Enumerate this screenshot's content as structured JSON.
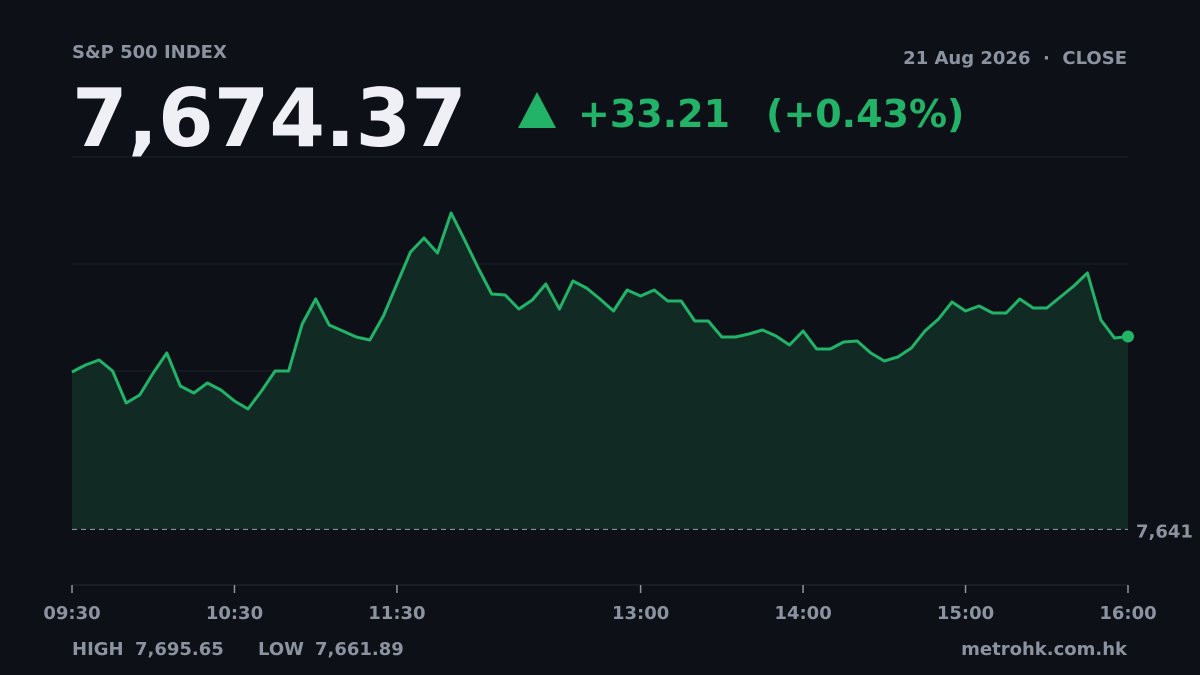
{
  "chart_data": {
    "type": "line",
    "title": "S&P 500 INDEX",
    "subtitle": "21 Aug 2026  ·  CLOSE",
    "last_price": "7,674.37",
    "change": "+33.21",
    "change_pct": "(+0.43%)",
    "high_label": "HIGH",
    "high": "7,695.65",
    "low_label": "LOW",
    "low": "7,661.89",
    "source": "metrohk.com.hk",
    "color": "#22b368",
    "fill_color": "#122a24",
    "reference": {
      "value": 7641.16,
      "label": "7,641"
    },
    "x": [
      570,
      575,
      580,
      585,
      590,
      595,
      600,
      605,
      610,
      615,
      620,
      625,
      630,
      635,
      640,
      645,
      650,
      655,
      660,
      665,
      670,
      675,
      680,
      685,
      690,
      695,
      700,
      705,
      710,
      715,
      720,
      725,
      730,
      735,
      740,
      745,
      750,
      755,
      760,
      765,
      770,
      775,
      780,
      785,
      790,
      795,
      800,
      805,
      810,
      815,
      820,
      825,
      830,
      835,
      840,
      845,
      850,
      855,
      860,
      865,
      870,
      875,
      880,
      885,
      890,
      895,
      900,
      905,
      910,
      915,
      920,
      925,
      930,
      935,
      940,
      945,
      950,
      955,
      960
    ],
    "values": [
      7668.26,
      7669.47,
      7670.33,
      7668.44,
      7662.92,
      7664.3,
      7668.09,
      7671.54,
      7665.85,
      7664.65,
      7666.37,
      7665.16,
      7663.27,
      7661.89,
      7664.99,
      7668.44,
      7668.44,
      7676.53,
      7680.84,
      7676.36,
      7675.32,
      7674.29,
      7673.77,
      7677.91,
      7683.42,
      7688.93,
      7691.34,
      7688.76,
      7695.65,
      7691.0,
      7686.18,
      7681.7,
      7681.53,
      7679.11,
      7680.66,
      7683.42,
      7679.11,
      7683.94,
      7682.73,
      7680.84,
      7678.77,
      7682.39,
      7681.35,
      7682.39,
      7680.49,
      7680.49,
      7677.05,
      7677.05,
      7674.29,
      7674.29,
      7674.81,
      7675.5,
      7674.46,
      7672.91,
      7675.32,
      7672.22,
      7672.22,
      7673.43,
      7673.6,
      7671.54,
      7670.16,
      7670.85,
      7672.4,
      7675.32,
      7677.39,
      7680.32,
      7678.77,
      7679.63,
      7678.43,
      7678.43,
      7680.84,
      7679.29,
      7679.29,
      7681.18,
      7683.08,
      7685.31,
      7677.22,
      7674.12,
      7674.37
    ],
    "xlim": [
      570,
      960
    ],
    "xticks": [
      {
        "value": 570,
        "label": "09:30"
      },
      {
        "value": 630,
        "label": "10:30"
      },
      {
        "value": 690,
        "label": "11:30"
      },
      {
        "value": 780,
        "label": "13:00"
      },
      {
        "value": 840,
        "label": "14:00"
      },
      {
        "value": 900,
        "label": "15:00"
      },
      {
        "value": 960,
        "label": "16:00"
      }
    ],
    "ylim": [
      7631.58,
      7705.29
    ]
  }
}
